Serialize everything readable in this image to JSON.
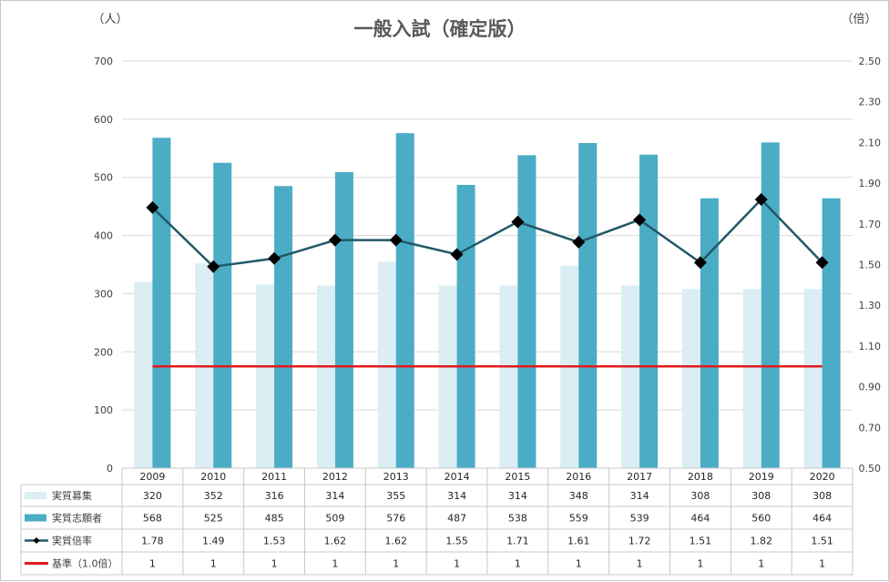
{
  "chart_data": {
    "type": "bar",
    "title": "一般入試（確定版）",
    "left_unit": "（人）",
    "right_unit": "（倍）",
    "categories": [
      "2009",
      "2010",
      "2011",
      "2012",
      "2013",
      "2014",
      "2015",
      "2016",
      "2017",
      "2018",
      "2019",
      "2020"
    ],
    "left_axis": {
      "min": 0,
      "max": 700,
      "step": 100
    },
    "right_axis": {
      "min": 0.5,
      "max": 2.5,
      "step": 0.2,
      "tick_labels": [
        "0.50",
        "0.70",
        "0.90",
        "1.10",
        "1.30",
        "1.50",
        "1.70",
        "1.90",
        "2.10",
        "2.30",
        "2.50"
      ]
    },
    "grid": true,
    "series": [
      {
        "name": "実質募集",
        "type": "bar",
        "axis": "left",
        "color": "#daeef3",
        "values": [
          320,
          352,
          316,
          314,
          355,
          314,
          314,
          348,
          314,
          308,
          308,
          308
        ]
      },
      {
        "name": "実質志願者",
        "type": "bar",
        "axis": "left",
        "color": "#4bacc6",
        "values": [
          568,
          525,
          485,
          509,
          576,
          487,
          538,
          559,
          539,
          464,
          560,
          464
        ]
      },
      {
        "name": "実質倍率",
        "type": "line",
        "axis": "right",
        "color": "#215968",
        "marker": "diamond",
        "values": [
          1.78,
          1.49,
          1.53,
          1.62,
          1.62,
          1.55,
          1.71,
          1.61,
          1.72,
          1.51,
          1.82,
          1.51
        ]
      },
      {
        "name": "基準（1.0倍）",
        "type": "line",
        "axis": "right",
        "color": "#e31a1c",
        "marker": "none",
        "values": [
          1,
          1,
          1,
          1,
          1,
          1,
          1,
          1,
          1,
          1,
          1,
          1
        ]
      }
    ],
    "data_table": true
  }
}
